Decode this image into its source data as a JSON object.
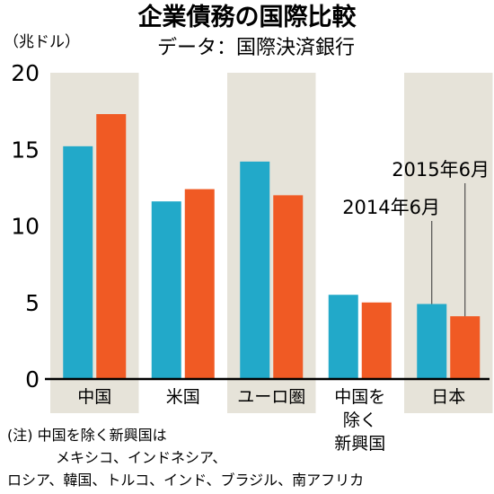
{
  "chart_data": {
    "type": "bar",
    "title": "企業債務の国際比較",
    "subtitle": "データ：国際決済銀行",
    "unit": "（兆ドル）",
    "categories": [
      "中国",
      "米国",
      "ユーロ圏",
      "中国を除く新興国",
      "日本"
    ],
    "category_lines": [
      [
        "中国"
      ],
      [
        "米国"
      ],
      [
        "ユーロ圏"
      ],
      [
        "中国を",
        "除く",
        "新興国"
      ],
      [
        "日本"
      ]
    ],
    "series": [
      {
        "name": "2014年6月",
        "values": [
          15.2,
          11.6,
          14.2,
          5.5,
          4.9
        ]
      },
      {
        "name": "2015年6月",
        "values": [
          17.3,
          12.4,
          12.0,
          5.0,
          4.1
        ]
      }
    ],
    "ylim": [
      0,
      20
    ],
    "yticks": [
      "0",
      "5",
      "10",
      "15",
      "20"
    ],
    "colors": {
      "2014年6月": "#22a9c9",
      "2015年6月": "#f05a24",
      "band": "#e6e3d9",
      "axis": "#000000"
    },
    "annotations": [
      "2015年6月",
      "2014年6月"
    ],
    "note": [
      "(注) 中国を除く新興国は",
      "メキシコ、インドネシア、",
      "ロシア、韓国、トルコ、インド、ブラジル、南アフリカ"
    ]
  }
}
